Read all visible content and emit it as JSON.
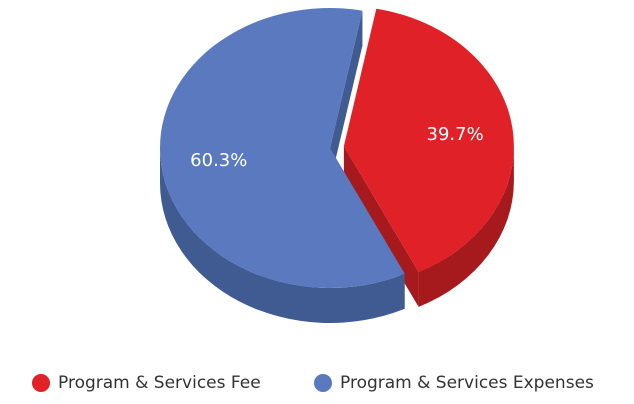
{
  "chart_data": {
    "type": "pie",
    "title": "",
    "is_3d": true,
    "slices": [
      {
        "label": "Program & Services Fee",
        "value": 39.7,
        "display": "39.7%",
        "color": "#e02128",
        "side_color": "#a6191d",
        "exploded": true
      },
      {
        "label": "Program & Services Expenses",
        "value": 60.3,
        "display": "60.3%",
        "color": "#5a79bf",
        "side_color": "#405a92",
        "exploded": false
      }
    ],
    "legend": {
      "position": "bottom",
      "entries": [
        "Program & Services Fee",
        "Program & Services Expenses"
      ]
    }
  }
}
